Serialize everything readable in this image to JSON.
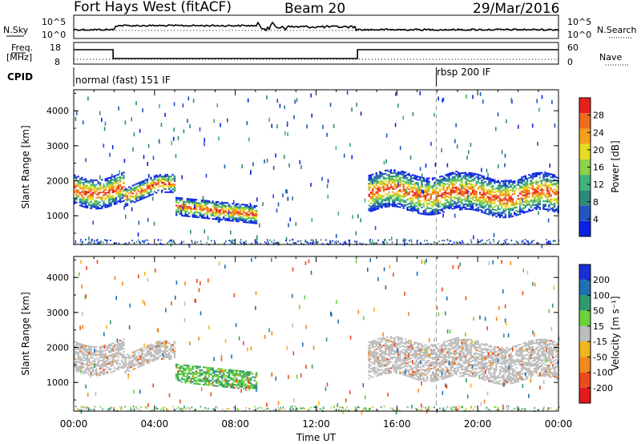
{
  "header": {
    "radar_name": "Fort Hays West (fitACF)",
    "beam": "Beam 20",
    "date": "29/Mar/2016"
  },
  "top_panel": {
    "left_label": "N.Sky",
    "left_ticks": [
      "10^5",
      "10^0"
    ],
    "right_ticks": [
      "10^5",
      "10^0"
    ],
    "right_label": "N.Search"
  },
  "freq_panel": {
    "left_label_1": "Freq.",
    "left_label_2": "[MHz]",
    "left_ticks": [
      "18",
      "8"
    ],
    "right_ticks": [
      "60",
      "0"
    ],
    "right_label": "Nave"
  },
  "cpid": {
    "label": "CPID",
    "modes": [
      "normal (fast) 151 IF",
      "rbsp 200 IF"
    ]
  },
  "colors": {
    "power_scale": [
      "#0a22e6",
      "#2255c0",
      "#2e8a78",
      "#3fb37a",
      "#8cd24a",
      "#e8dc1e",
      "#f5a11b",
      "#f06a1c",
      "#e8201c"
    ],
    "velocity_scale": [
      "#1a2fd8",
      "#1f6fb4",
      "#2f9b6c",
      "#6bd23a",
      "#bdbdbd",
      "#f2b51e",
      "#f08a1c",
      "#ec4b1c",
      "#e31b1b"
    ]
  },
  "chart_data": [
    {
      "type": "heatmap",
      "name": "Power panel",
      "ylabel": "Slant Range [km]",
      "xlabel": "",
      "ylim": [
        180,
        4600
      ],
      "yticks": [
        "1000",
        "2000",
        "3000",
        "4000"
      ],
      "colorbar": {
        "label": "Power [dB]",
        "ticks": [
          "4",
          "8",
          "12",
          "16",
          "20",
          "24",
          "28"
        ],
        "range": [
          0,
          32
        ]
      }
    },
    {
      "type": "heatmap",
      "name": "Velocity panel",
      "ylabel": "Slant Range [km]",
      "xlabel": "Time UT",
      "ylim": [
        180,
        4600
      ],
      "yticks": [
        "1000",
        "2000",
        "3000",
        "4000"
      ],
      "xticks": [
        "00:00",
        "04:00",
        "08:00",
        "12:00",
        "16:00",
        "20:00",
        "00:00"
      ],
      "colorbar": {
        "label": "Velocity [m s⁻¹]",
        "ticks": [
          "200",
          "100",
          "50",
          "15",
          "-15",
          "-50",
          "-100",
          "-200"
        ]
      }
    }
  ]
}
